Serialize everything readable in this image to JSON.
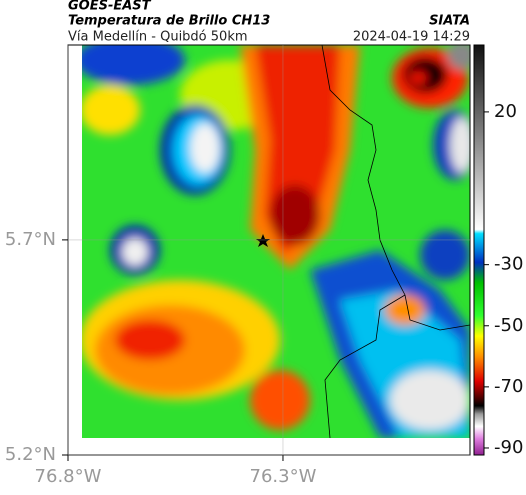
{
  "header": {
    "source": "GOES-EAST",
    "title": "Temperatura de Brillo CH13",
    "agency": "SIATA",
    "subtitle": "Vía Medellín - Quibdó 50km",
    "datetime": "2024-04-19 14:29"
  },
  "map": {
    "xlim": [
      -76.8,
      -75.865
    ],
    "ylim": [
      5.2,
      6.153
    ],
    "xticks": [
      {
        "value": -76.8,
        "label": "76.8°W"
      },
      {
        "value": -76.3,
        "label": "76.3°W"
      }
    ],
    "yticks": [
      {
        "value": 5.7,
        "label": "5.7°N"
      },
      {
        "value": 5.2,
        "label": "5.2°N"
      }
    ]
  },
  "colorbar": {
    "clim": [
      -92.3,
      41.9
    ],
    "ticks": [
      20,
      -30,
      -50,
      -70,
      -90
    ]
  }
}
